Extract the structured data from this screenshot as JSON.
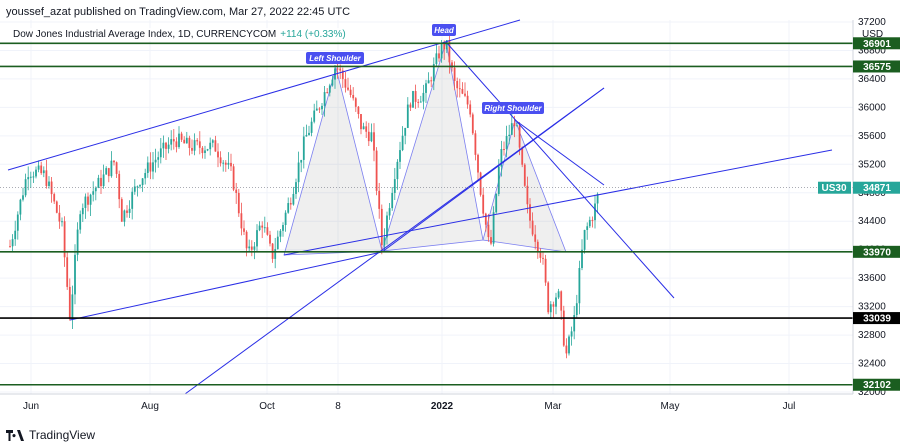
{
  "header": {
    "publisher": "youssef_azat published on TradingView.com, Mar 27, 2022 22:45 UTC"
  },
  "legend": {
    "symbol": "Dow Jones Industrial Average Index, 1D, CURRENCYCOM",
    "change": "+114 (+0.33%)"
  },
  "footer": {
    "brand": "TradingView"
  },
  "chart_data": {
    "type": "candlestick",
    "y_axis": {
      "unit": "USD",
      "ticks": [
        32000,
        32400,
        32800,
        33200,
        33600,
        34000,
        34400,
        34800,
        35200,
        35600,
        36000,
        36400,
        36800,
        37200
      ],
      "range": [
        32000,
        37200
      ]
    },
    "x_axis": {
      "ticks": [
        "Jun",
        "Aug",
        "Oct",
        "8",
        "2022",
        "Mar",
        "May",
        "Jul"
      ]
    },
    "current_price": {
      "symbol": "US30",
      "value": "34871"
    },
    "levels": [
      {
        "value": 36901,
        "label": "36901",
        "color": "#1b5e20"
      },
      {
        "value": 36575,
        "label": "36575",
        "color": "#1b5e20"
      },
      {
        "value": 33970,
        "label": "33970",
        "color": "#1b5e20"
      },
      {
        "value": 33039,
        "label": "33039",
        "color": "#000000"
      },
      {
        "value": 32102,
        "label": "32102",
        "color": "#1b5e20"
      }
    ],
    "annotations": [
      "Left Shoulder",
      "Head",
      "Right Shoulder"
    ],
    "up_color": "#26a69a",
    "down_color": "#ef5350",
    "line_color": "#2a2ee6"
  }
}
